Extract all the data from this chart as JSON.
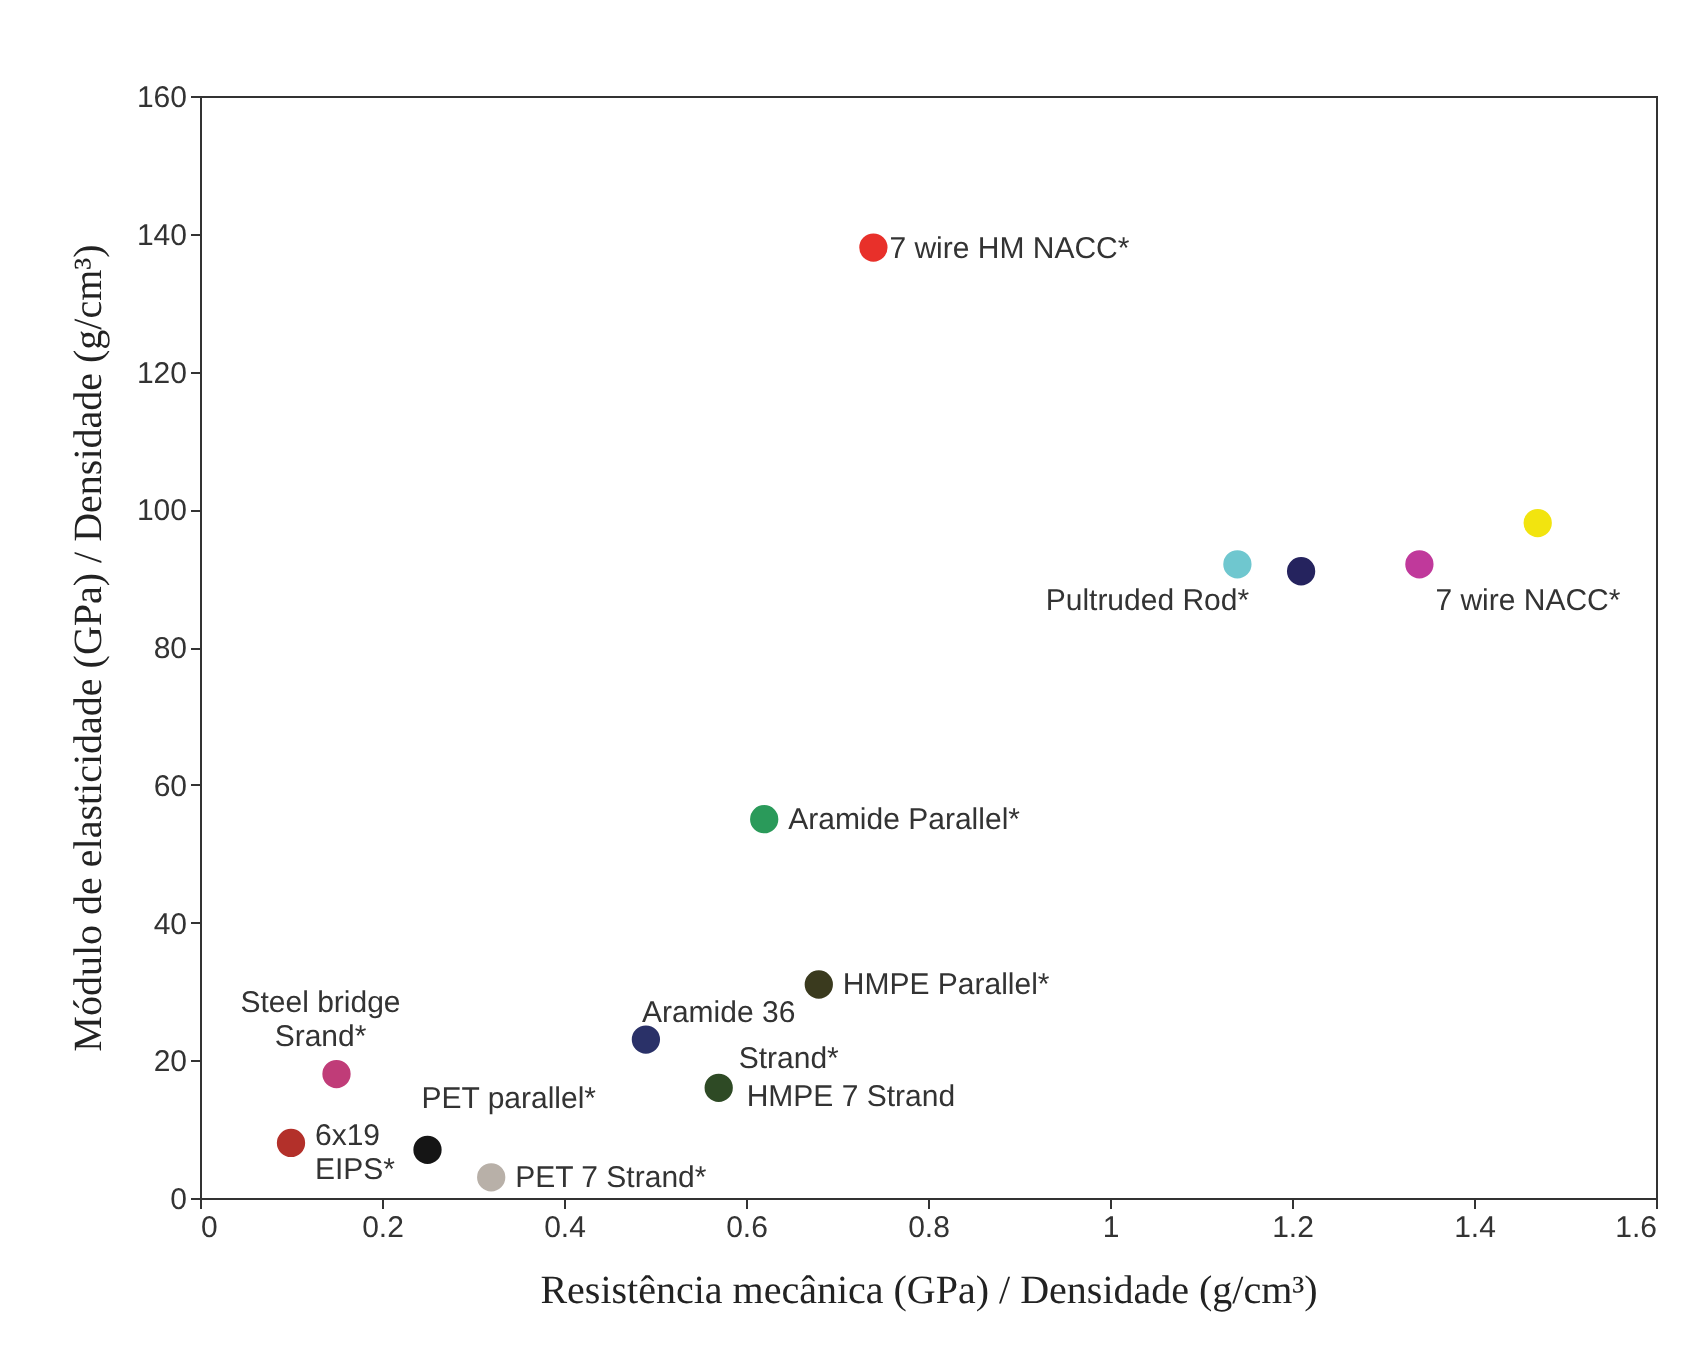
{
  "chart_data": {
    "type": "scatter",
    "xlabel": "Resistência mecânica (GPa) / Densidade (g/cm³)",
    "ylabel": "Módulo de elasticidade (GPa) / Densidade (g/cm³)",
    "xlim": [
      0,
      1.6
    ],
    "ylim": [
      0,
      160
    ],
    "xticks": [
      0,
      0.2,
      0.4,
      0.6,
      0.8,
      1,
      1.2,
      1.4,
      1.6
    ],
    "yticks": [
      0,
      20,
      40,
      60,
      80,
      100,
      120,
      140,
      160
    ],
    "grid": false,
    "legend": false,
    "marker": "circle",
    "x": [
      0.74,
      1.47,
      1.34,
      1.21,
      1.14,
      0.62,
      0.68,
      0.49,
      0.57,
      0.15,
      0.1,
      0.25,
      0.32
    ],
    "values": [
      138,
      98,
      92,
      91,
      92,
      55,
      31,
      23,
      16,
      18,
      8,
      7,
      3
    ],
    "colors": [
      "#e8302a",
      "#f2e40f",
      "#c0399b",
      "#25235e",
      "#6fc7cf",
      "#2a9a5a",
      "#3a3a1e",
      "#2a3168",
      "#2e4a25",
      "#c03c78",
      "#b3302a",
      "#151515",
      "#b8b0a8"
    ],
    "annotations": [
      {
        "text": "7 wire HM NACC*",
        "x": 0.74,
        "y": 138
      },
      {
        "text": "7 wire NACC*",
        "x": 1.34,
        "y": 92
      },
      {
        "text": "Pultruded Rod*",
        "x": 1.14,
        "y": 92
      },
      {
        "text": "Aramide Parallel*",
        "x": 0.62,
        "y": 55
      },
      {
        "text": "HMPE Parallel*",
        "x": 0.68,
        "y": 31
      },
      {
        "text": "Aramide 36",
        "x": 0.49,
        "y": 23
      },
      {
        "text": "HMPE 7 Strand",
        "x": 0.57,
        "y": 16
      },
      {
        "text": "Steel bridge\nSrand*",
        "x": 0.15,
        "y": 18
      },
      {
        "text": "6x19\nEIPS*",
        "x": 0.1,
        "y": 8
      },
      {
        "text": "PET parallel*",
        "x": 0.25,
        "y": 7
      },
      {
        "text": "PET 7 Strand*",
        "x": 0.32,
        "y": 3
      },
      {
        "text": "Strand*",
        "x": 0.57,
        "y": 16
      }
    ]
  }
}
